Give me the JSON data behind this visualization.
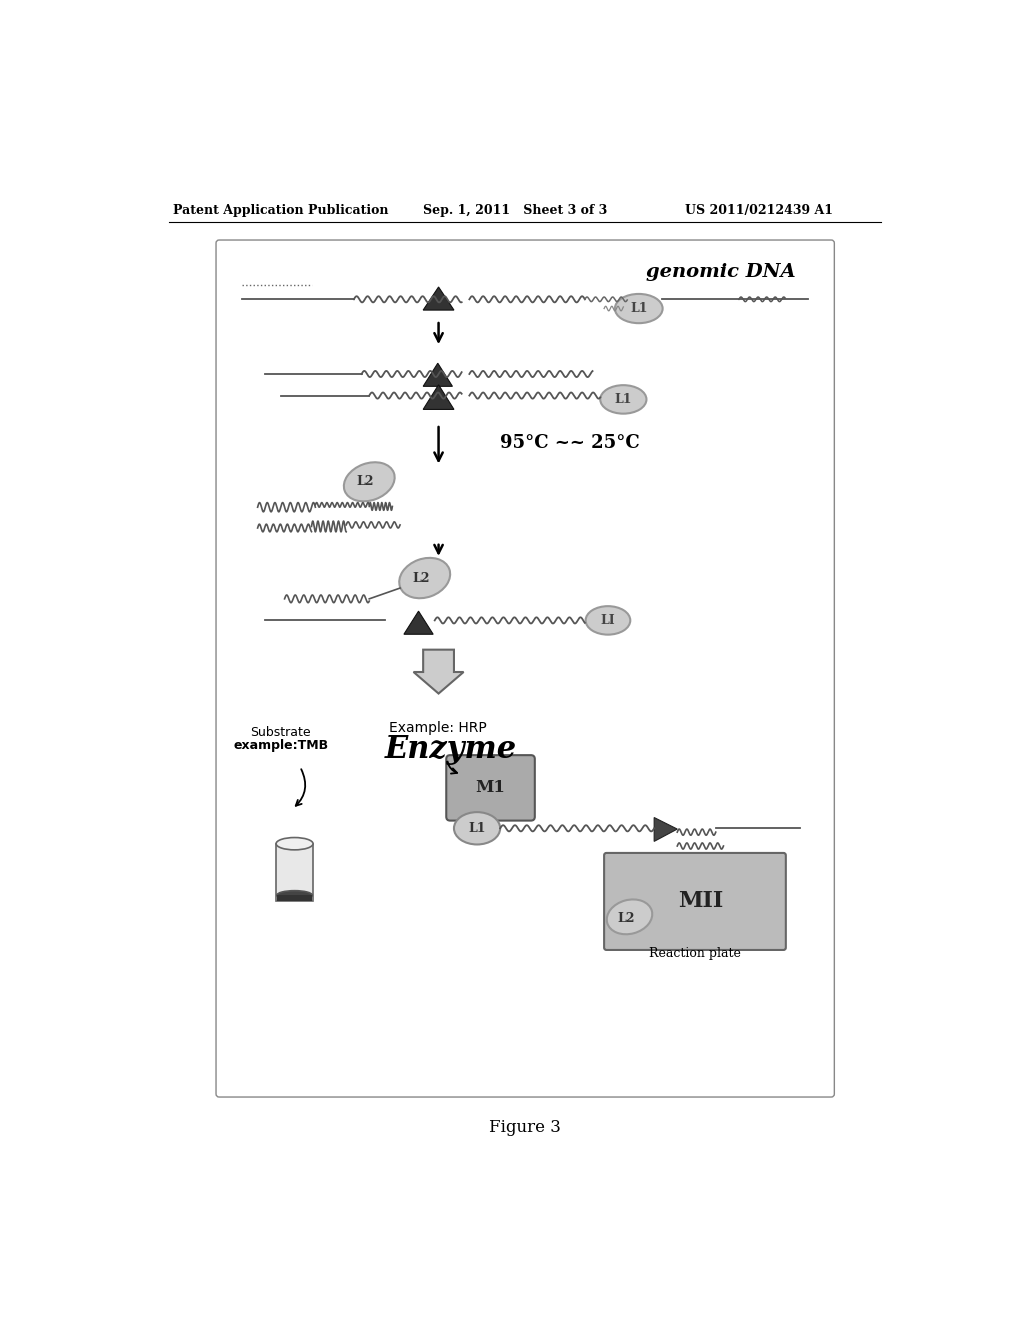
{
  "header_left": "Patent Application Publication",
  "header_mid": "Sep. 1, 2011   Sheet 3 of 3",
  "header_right": "US 2011/0212439 A1",
  "figure_label": "Figure 3",
  "title_label": "genomic DNA",
  "temp_label": "95°C ~~ 25°C",
  "enzyme_label": "Enzyme",
  "enzyme_sublabel": "Example: HRP",
  "substrate_label": "Substrate\nexample:TMB",
  "reaction_plate_label": "Reaction plate",
  "m1_label": "M1",
  "l1_label": "L1",
  "l1_label2": "LI",
  "l2_label": "L2",
  "mii_label": "MII",
  "bg_color": "#ffffff"
}
